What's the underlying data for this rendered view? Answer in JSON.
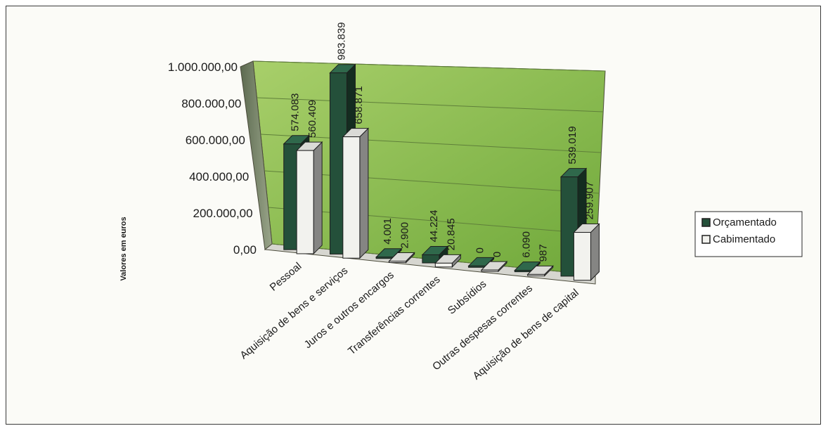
{
  "chart_data": {
    "type": "bar",
    "title": "",
    "xlabel": "",
    "ylabel": "Valores em euros",
    "ylim": [
      0,
      1000000
    ],
    "y_ticks": [
      "0,00",
      "200.000,00",
      "400.000,00",
      "600.000,00",
      "800.000,00",
      "1.000.000,00"
    ],
    "categories": [
      "Pessoal",
      "Aquisição de bens e serviços",
      "Juros e outros encargos",
      "Transferências correntes",
      "Subsídios",
      "Outras despesas correntes",
      "Aquisição de bens de capital"
    ],
    "series": [
      {
        "name": "Orçamentado",
        "values": [
          574083,
          983839,
          4001,
          44224,
          0,
          6090,
          539019
        ],
        "labels": [
          "574.083",
          "983.839",
          "4.001",
          "44.224",
          "0",
          "6.090",
          "539.019"
        ],
        "color": "#24503a"
      },
      {
        "name": "Cabimentado",
        "values": [
          560409,
          658871,
          2900,
          20845,
          0,
          987,
          259907
        ],
        "labels": [
          "560.409",
          "658.871",
          "2.900",
          "20.845",
          "0",
          "987",
          "259.907"
        ],
        "color": "#f2f2ee"
      }
    ],
    "legend": "right",
    "grid": true,
    "wall_color": "#8fc04c",
    "bar_3d": true
  }
}
